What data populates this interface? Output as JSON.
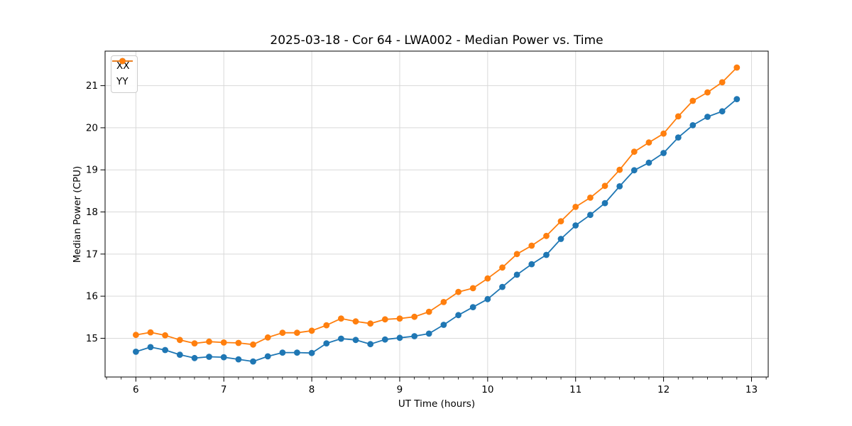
{
  "chart_data": {
    "type": "line",
    "title": "2025-03-18 - Cor 64 - LWA002 - Median Power vs. Time",
    "xlabel": "UT Time (hours)",
    "ylabel": "Median Power (CPU)",
    "xlim": [
      5.65,
      13.19
    ],
    "ylim": [
      14.08,
      21.82
    ],
    "xticks": [
      6,
      7,
      8,
      9,
      10,
      11,
      12,
      13
    ],
    "yticks": [
      15,
      16,
      17,
      18,
      19,
      20,
      21
    ],
    "x_minor_tick_step_hours": 0.1667,
    "grid": true,
    "legend_position": "upper-left",
    "x": [
      6.0,
      6.167,
      6.333,
      6.5,
      6.667,
      6.833,
      7.0,
      7.167,
      7.333,
      7.5,
      7.667,
      7.833,
      8.0,
      8.167,
      8.333,
      8.5,
      8.667,
      8.833,
      9.0,
      9.167,
      9.333,
      9.5,
      9.667,
      9.833,
      10.0,
      10.167,
      10.333,
      10.5,
      10.667,
      10.833,
      11.0,
      11.167,
      11.333,
      11.5,
      11.667,
      11.833,
      12.0,
      12.167,
      12.333,
      12.5,
      12.667,
      12.833
    ],
    "series": [
      {
        "name": "XX",
        "color": "#1f77b4",
        "values": [
          14.68,
          14.79,
          14.72,
          14.61,
          14.53,
          14.56,
          14.55,
          14.5,
          14.45,
          14.57,
          14.66,
          14.66,
          14.65,
          14.88,
          14.99,
          14.96,
          14.86,
          14.97,
          15.01,
          15.05,
          15.11,
          15.32,
          15.55,
          15.74,
          15.93,
          16.22,
          16.51,
          16.76,
          16.98,
          17.36,
          17.68,
          17.93,
          18.21,
          18.61,
          18.99,
          19.17,
          19.4,
          19.77,
          20.06,
          20.26,
          20.39,
          20.68
        ]
      },
      {
        "name": "YY",
        "color": "#ff7f0e",
        "values": [
          15.08,
          15.14,
          15.07,
          14.96,
          14.88,
          14.92,
          14.9,
          14.89,
          14.85,
          15.02,
          15.13,
          15.13,
          15.18,
          15.31,
          15.47,
          15.4,
          15.35,
          15.45,
          15.47,
          15.51,
          15.63,
          15.86,
          16.1,
          16.19,
          16.42,
          16.68,
          17.0,
          17.2,
          17.43,
          17.78,
          18.12,
          18.34,
          18.62,
          19.0,
          19.43,
          19.65,
          19.86,
          20.27,
          20.64,
          20.84,
          21.08,
          21.43
        ]
      }
    ],
    "colors": {
      "grid": "#d9d9d9",
      "spine": "#000000",
      "background": "#ffffff"
    }
  }
}
